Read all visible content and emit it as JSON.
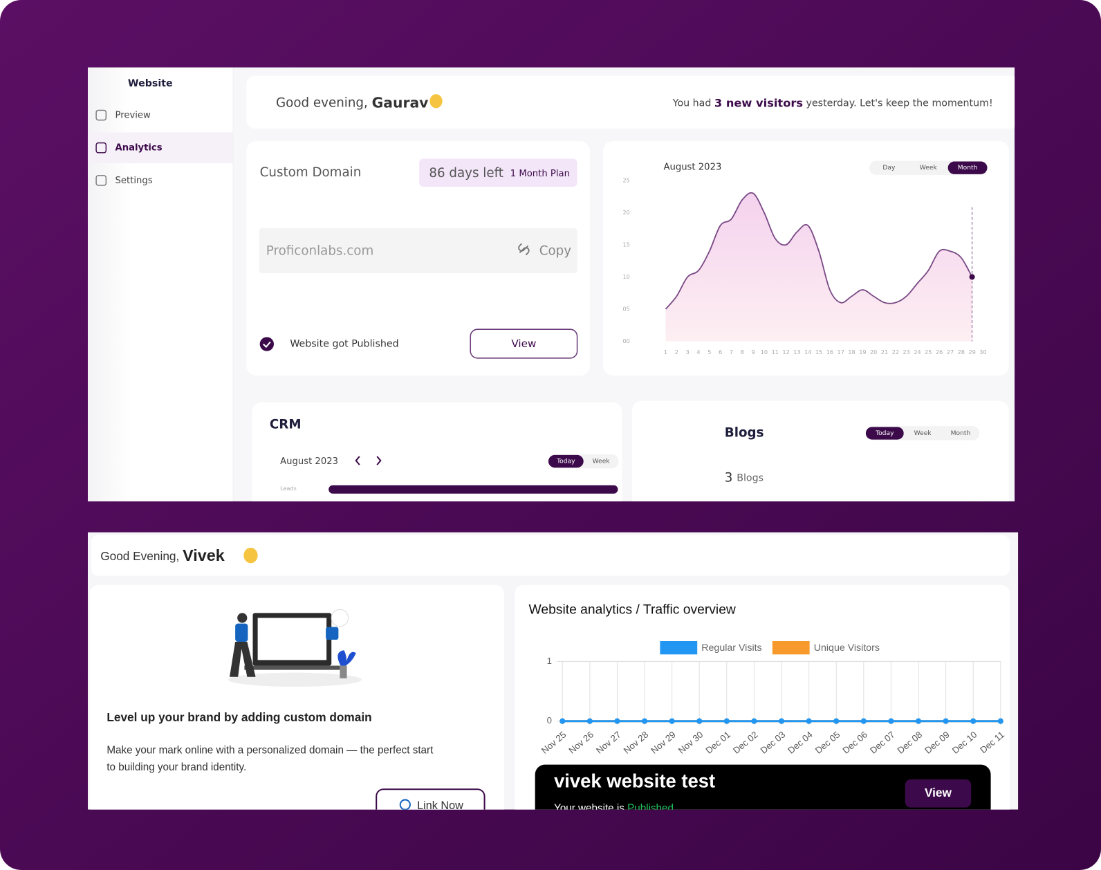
{
  "top": {
    "sidebar": {
      "title": "Website",
      "items": [
        "Preview",
        "Analytics",
        "Settings"
      ],
      "active": "Analytics"
    },
    "greeting": {
      "text": "Good evening,",
      "name": "Gaurav"
    },
    "visitors": {
      "before": "You had",
      "highlight": "3 new visitors",
      "after": "yesterday. Let's keep the momentum!"
    },
    "domain": {
      "title": "Custom Domain",
      "days_left": "86 days left",
      "plan": "1 Month Plan",
      "url": "Proficonlabs.com",
      "copy": "Copy",
      "status": "Website got Published",
      "view": "View"
    },
    "crm": {
      "title": "CRM",
      "month": "August 2023",
      "toggles": [
        "Today",
        "Week"
      ],
      "active_toggle": "Today",
      "row_label": "Leads"
    },
    "blogs": {
      "title": "Blogs",
      "toggles": [
        "Today",
        "Week",
        "Month"
      ],
      "active_toggle": "Today",
      "count": 3,
      "unit": "Blogs"
    }
  },
  "bottom": {
    "greeting": {
      "text": "Good Evening,",
      "name": "Vivek"
    },
    "promo": {
      "title": "Level up your brand by adding custom domain",
      "text_line1": "Make your mark online with a personalized domain — the perfect start",
      "text_line2": "to building your brand identity.",
      "button": "Link Now"
    },
    "site": {
      "name": "vivek website test",
      "status_text": "Your website is",
      "status": "Published",
      "view": "View"
    }
  },
  "chart_data": [
    {
      "type": "area",
      "title": "August 2023",
      "toggles": [
        "Day",
        "Week",
        "Month"
      ],
      "active_toggle": "Month",
      "x": [
        1,
        2,
        3,
        4,
        5,
        6,
        7,
        8,
        9,
        10,
        11,
        12,
        13,
        14,
        15,
        16,
        17,
        18,
        19,
        20,
        21,
        22,
        23,
        24,
        25,
        26,
        27,
        28,
        29,
        30
      ],
      "values": [
        5,
        7,
        10,
        11,
        14,
        18,
        19,
        22,
        23,
        20,
        16,
        15,
        17,
        18,
        14,
        8,
        6,
        7,
        8,
        7,
        6,
        6,
        7,
        9,
        11,
        14,
        14,
        13,
        10,
        null
      ],
      "xlim": [
        1,
        30
      ],
      "ylim": [
        0,
        25
      ],
      "yticks": [
        {
          "value": 0,
          "label": "00"
        },
        {
          "value": 5,
          "label": "05"
        },
        10,
        15,
        20,
        25
      ],
      "color": "#7a4a86"
    },
    {
      "type": "line",
      "title": "Website analytics / Traffic overview",
      "categories": [
        "Nov 25",
        "Nov 26",
        "Nov 27",
        "Nov 28",
        "Nov 29",
        "Nov 30",
        "Dec 01",
        "Dec 02",
        "Dec 03",
        "Dec 04",
        "Dec 05",
        "Dec 06",
        "Dec 07",
        "Dec 08",
        "Dec 09",
        "Dec 10",
        "Dec 11"
      ],
      "series": [
        {
          "name": "Regular Visits",
          "color": "#2196f3",
          "values": [
            0,
            0,
            0,
            0,
            0,
            0,
            0,
            0,
            0,
            0,
            0,
            0,
            0,
            0,
            0,
            0,
            0
          ]
        },
        {
          "name": "Unique Visitors",
          "color": "#f7992b",
          "values": [
            0,
            0,
            0,
            0,
            0,
            0,
            0,
            0,
            0,
            0,
            0,
            0,
            0,
            0,
            0,
            0,
            0
          ]
        }
      ],
      "ylim": [
        0,
        1
      ],
      "yticks": [
        0,
        1
      ],
      "grid": true
    }
  ]
}
